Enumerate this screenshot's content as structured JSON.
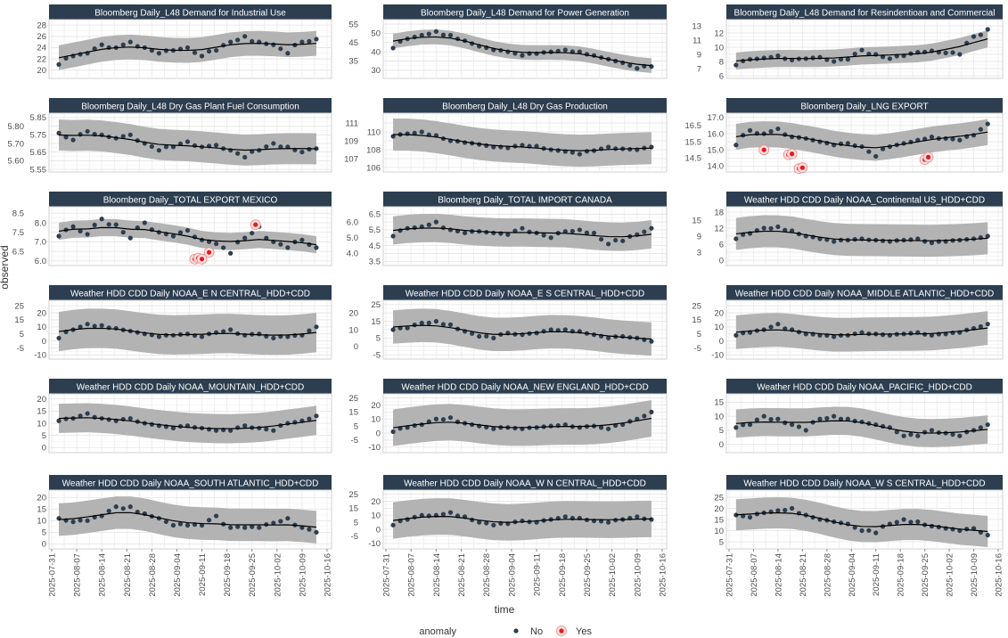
{
  "chart_data": {
    "type": "scatter",
    "facet_layout": "3 columns x 6 rows",
    "xlabel": "time",
    "ylabel": "observed",
    "x_unit": "days since 2025-07-31",
    "x_ticks": [
      "2025-07-31",
      "2025-08-07",
      "2025-08-14",
      "2025-08-21",
      "2025-08-28",
      "2025-09-04",
      "2025-09-11",
      "2025-09-18",
      "2025-09-25",
      "2025-10-02",
      "2025-10-09",
      "2025-10-16"
    ],
    "x_days": [
      2,
      6,
      10,
      14,
      18,
      22,
      26,
      30,
      34,
      38,
      42,
      46,
      50,
      54,
      58,
      62,
      66,
      70,
      74
    ],
    "legend": {
      "title": "anomaly",
      "placement": "bottom",
      "items": [
        {
          "label": "No",
          "color": "#2c3e50"
        },
        {
          "label": "Yes",
          "color": "#e31a1c"
        }
      ]
    },
    "colors": {
      "strip": "#2c3e50",
      "point": "#2c3e50",
      "band": "#b3b3b3",
      "anomaly": "#e31a1c",
      "trend": "#000000"
    },
    "panels": [
      {
        "title": "Bloomberg Daily_L48 Demand for Industrial Use",
        "ylim": [
          19,
          28.5
        ],
        "yticks": [
          "20",
          "22",
          "24",
          "26",
          "28"
        ],
        "band": 2.2,
        "values": [
          21,
          22.5,
          23,
          24.5,
          24,
          25,
          24,
          23,
          23.5,
          24,
          22.5,
          23.5,
          25,
          26,
          25,
          24.5,
          23,
          25,
          25.5
        ],
        "anomalies": []
      },
      {
        "title": "Bloomberg Daily_L48 Demand for Power Generation",
        "ylim": [
          27,
          56
        ],
        "yticks": [
          "30",
          "35",
          "40",
          "45",
          "50",
          "55"
        ],
        "band": 4,
        "values": [
          42,
          47,
          49,
          51,
          49,
          46,
          43,
          41,
          40,
          38,
          39,
          40,
          41,
          40,
          38,
          36,
          34,
          31,
          32
        ],
        "anomalies": []
      },
      {
        "title": "Bloomberg Daily_L48 Demand for Resindentioan and Commercial",
        "ylim": [
          6,
          13.5
        ],
        "yticks": [
          "6",
          "7",
          "8",
          "9",
          "10",
          "11",
          "12",
          "13"
        ],
        "band": 1.2,
        "values": [
          7.5,
          8.3,
          8.5,
          8.8,
          8.2,
          8.4,
          8.6,
          8,
          8.3,
          9.6,
          9,
          8.4,
          8.8,
          9.3,
          9.5,
          9.2,
          9,
          11.5,
          12.5
        ],
        "anomalies": []
      },
      {
        "title": "Bloomberg Daily_L48 Dry Gas Plant Fuel Consumption",
        "ylim": [
          5.55,
          5.86
        ],
        "yticks": [
          "5.55",
          "5.60",
          "5.65",
          "5.70",
          "5.75",
          "5.80",
          "5.85"
        ],
        "band": 0.09,
        "values": [
          5.76,
          5.72,
          5.77,
          5.75,
          5.73,
          5.75,
          5.7,
          5.66,
          5.68,
          5.71,
          5.68,
          5.69,
          5.66,
          5.62,
          5.66,
          5.7,
          5.68,
          5.65,
          5.67
        ],
        "anomalies": []
      },
      {
        "title": "Bloomberg Daily_L48 Dry Gas Production",
        "ylim": [
          105.8,
          111.8
        ],
        "yticks": [
          "106",
          "107",
          "108",
          "109",
          "110",
          "111"
        ],
        "band": 1.8,
        "values": [
          109.5,
          109.8,
          110,
          109.6,
          109,
          108.8,
          108.6,
          108.3,
          108.2,
          108.5,
          108.4,
          108.0,
          107.8,
          107.5,
          107.9,
          108.3,
          108.1,
          108.0,
          108.3
        ],
        "anomalies": []
      },
      {
        "title": "Bloomberg Daily_LNG EXPORT",
        "ylim": [
          13.8,
          17.1
        ],
        "yticks": [
          "14.0",
          "14.5",
          "15.0",
          "15.5",
          "16.0",
          "16.5",
          "17.0"
        ],
        "band": 0.8,
        "values": [
          15.3,
          16.2,
          16.0,
          16.3,
          15.8,
          15.7,
          15.5,
          15.3,
          15.4,
          15.2,
          14.6,
          15.2,
          15.4,
          15.6,
          15.8,
          15.7,
          15.6,
          15.9,
          16.6
        ],
        "anomalies": [
          [
            10,
            15.0
          ],
          [
            17,
            14.7
          ],
          [
            18,
            14.75
          ],
          [
            20,
            13.85
          ],
          [
            21,
            13.9
          ],
          [
            56,
            14.4
          ],
          [
            57,
            14.55
          ]
        ]
      },
      {
        "title": "Bloomberg Daily_TOTAL EXPORT MEXICO",
        "ylim": [
          5.9,
          8.7
        ],
        "yticks": [
          "6.0",
          "6.5",
          "7.0",
          "7.5",
          "8.0",
          "8.5"
        ],
        "band": 0.45,
        "values": [
          7.3,
          7.8,
          7.4,
          8.2,
          7.9,
          7.2,
          8.0,
          7.5,
          7.3,
          7.6,
          7.1,
          6.9,
          6.4,
          7.2,
          7.8,
          7.0,
          6.7,
          7.1,
          6.7
        ],
        "anomalies": [
          [
            40,
            6.1
          ],
          [
            41,
            6.15
          ],
          [
            42,
            6.1
          ],
          [
            44,
            6.45
          ],
          [
            57,
            7.9
          ]
        ]
      },
      {
        "title": "Bloomberg Daily_TOTAL IMPORT CANADA",
        "ylim": [
          3.4,
          6.8
        ],
        "yticks": [
          "3.5",
          "4.0",
          "4.5",
          "5.0",
          "5.5",
          "6.0",
          "6.5"
        ],
        "band": 0.9,
        "values": [
          5.1,
          5.6,
          5.7,
          6.0,
          5.5,
          5.3,
          5.4,
          5.3,
          5.2,
          5.6,
          5.3,
          5.0,
          5.4,
          5.5,
          5.3,
          4.6,
          4.8,
          5.2,
          5.6
        ],
        "anomalies": []
      },
      {
        "title": "Weather HDD CDD Daily NOAA_Continental US_HDD+CDD",
        "ylim": [
          -1,
          19
        ],
        "yticks": [
          "0",
          "3",
          "6",
          "9",
          "12",
          "15",
          "18"
        ],
        "band": 6,
        "values": [
          8,
          10,
          12,
          12.5,
          11,
          9,
          8,
          7,
          7.5,
          8,
          7.5,
          7,
          7.5,
          8,
          6.5,
          7,
          7.5,
          8,
          9
        ],
        "anomalies": []
      },
      {
        "title": "Weather HDD CDD Daily NOAA_E N CENTRAL_HDD+CDD",
        "ylim": [
          -11,
          27
        ],
        "yticks": [
          "-10",
          "-5",
          "0",
          "5",
          "10",
          "15",
          "20",
          "25"
        ],
        "band": 14,
        "values": [
          2,
          8,
          12,
          11,
          9,
          7,
          5,
          3,
          4,
          5,
          3,
          6,
          8,
          4,
          5,
          2,
          3,
          4,
          10
        ],
        "anomalies": []
      },
      {
        "title": "Weather HDD CDD Daily NOAA_E S CENTRAL_HDD+CDD",
        "ylim": [
          -6,
          26
        ],
        "yticks": [
          "-5",
          "0",
          "5",
          "10",
          "15",
          "20",
          "25"
        ],
        "band": 10,
        "values": [
          10,
          11,
          14,
          15,
          13,
          9,
          6,
          5,
          8,
          7,
          8,
          10,
          10,
          9,
          7,
          5,
          6,
          5,
          3
        ],
        "anomalies": []
      },
      {
        "title": "Weather HDD CDD Daily NOAA_MIDDLE ATLANTIC_HDD+CDD",
        "ylim": [
          -11,
          27
        ],
        "yticks": [
          "-10",
          "-5",
          "0",
          "5",
          "10",
          "15",
          "20",
          "25"
        ],
        "band": 12,
        "values": [
          4,
          6,
          8,
          12,
          8,
          5,
          4,
          3,
          4,
          6,
          5,
          4,
          5,
          6,
          4,
          5,
          6,
          9,
          12
        ],
        "anomalies": []
      },
      {
        "title": "Weather HDD CDD Daily NOAA_MOUNTAIN_HDD+CDD",
        "ylim": [
          -1,
          21
        ],
        "yticks": [
          "0",
          "5",
          "10",
          "15",
          "20"
        ],
        "band": 6,
        "values": [
          11,
          12,
          14,
          12,
          11,
          12,
          10,
          9,
          8,
          9,
          8,
          7,
          7,
          9,
          8,
          7,
          10,
          11,
          13
        ],
        "anomalies": []
      },
      {
        "title": "Weather HDD CDD Daily NOAA_NEW ENGLAND_HDD+CDD",
        "ylim": [
          -12,
          26
        ],
        "yticks": [
          "-10",
          "-5",
          "0",
          "5",
          "10",
          "15",
          "20",
          "25"
        ],
        "band": 13,
        "values": [
          1,
          4,
          6,
          10,
          11,
          7,
          5,
          3,
          4,
          3,
          4,
          5,
          6,
          4,
          5,
          3,
          6,
          10,
          15
        ],
        "anomalies": []
      },
      {
        "title": "Weather HDD CDD Daily NOAA_PACIFIC_HDD+CDD",
        "ylim": [
          -2,
          17
        ],
        "yticks": [
          "0",
          "5",
          "10",
          "15"
        ],
        "band": 5,
        "values": [
          6,
          7,
          10,
          9,
          7,
          5,
          9,
          10,
          9,
          8,
          7,
          6,
          3,
          3,
          5,
          4,
          3,
          5,
          7
        ],
        "anomalies": []
      },
      {
        "title": "Weather HDD CDD Daily NOAA_SOUTH ATLANTIC_HDD+CDD",
        "ylim": [
          -1,
          22
        ],
        "yticks": [
          "0",
          "5",
          "10",
          "15",
          "20"
        ],
        "band": 7,
        "values": [
          11,
          9.5,
          10,
          12,
          16,
          16,
          13,
          11,
          8,
          8,
          8,
          12,
          7,
          7,
          7,
          9,
          11,
          7,
          5
        ],
        "anomalies": []
      },
      {
        "title": "Weather HDD CDD Daily NOAA_W N CENTRAL_HDD+CDD",
        "ylim": [
          -12,
          26
        ],
        "yticks": [
          "-10",
          "-5",
          "0",
          "5",
          "10",
          "15",
          "20",
          "25"
        ],
        "band": 13,
        "values": [
          3,
          7,
          10,
          10,
          12,
          9,
          5,
          3,
          4,
          6,
          5,
          7,
          9,
          8,
          6,
          5,
          7,
          9,
          7
        ],
        "anomalies": []
      },
      {
        "title": "Weather HDD CDD Daily NOAA_W S CENTRAL_HDD+CDD",
        "ylim": [
          3,
          27
        ],
        "yticks": [
          "5",
          "10",
          "15",
          "20",
          "25"
        ],
        "band": 7,
        "values": [
          17,
          16,
          18,
          19,
          20,
          17,
          15,
          14,
          13,
          10,
          9,
          13,
          15,
          14,
          12,
          11,
          10,
          11,
          8
        ],
        "anomalies": []
      }
    ]
  }
}
